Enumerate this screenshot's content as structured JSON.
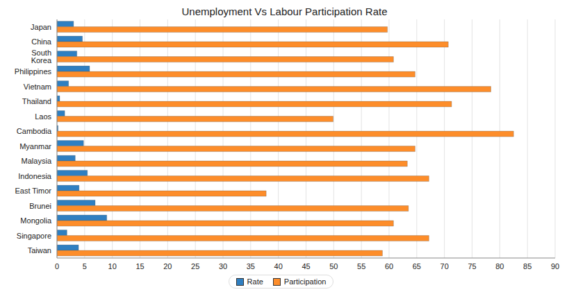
{
  "chart_data": {
    "type": "bar",
    "title": "Unemployment Vs Labour Participation Rate",
    "orientation": "horizontal",
    "categories": [
      "Japan",
      "China",
      "South Korea",
      "Philippines",
      "Vietnam",
      "Thailand",
      "Laos",
      "Cambodia",
      "Myanmar",
      "Malaysia",
      "Indonesia",
      "East Timor",
      "Brunei",
      "Mongolia",
      "Singapore",
      "Taiwan"
    ],
    "series": [
      {
        "name": "Rate",
        "color": "#2f7fc1",
        "values": [
          3.0,
          4.6,
          3.6,
          5.9,
          2.1,
          0.5,
          1.4,
          0.2,
          4.8,
          3.3,
          5.5,
          4.0,
          6.9,
          9.0,
          1.8,
          3.9
        ]
      },
      {
        "name": "Participation",
        "color": "#fd8d2a",
        "values": [
          59.7,
          70.7,
          60.8,
          64.7,
          78.4,
          71.3,
          49.9,
          82.5,
          64.7,
          63.3,
          67.2,
          37.8,
          63.5,
          60.8,
          67.2,
          58.8
        ]
      }
    ],
    "xlim": [
      0,
      90
    ],
    "xticks": [
      0,
      5,
      10,
      15,
      20,
      25,
      30,
      35,
      40,
      45,
      50,
      55,
      60,
      65,
      70,
      75,
      80,
      85,
      90
    ],
    "grid": true,
    "legend": "bottom"
  }
}
